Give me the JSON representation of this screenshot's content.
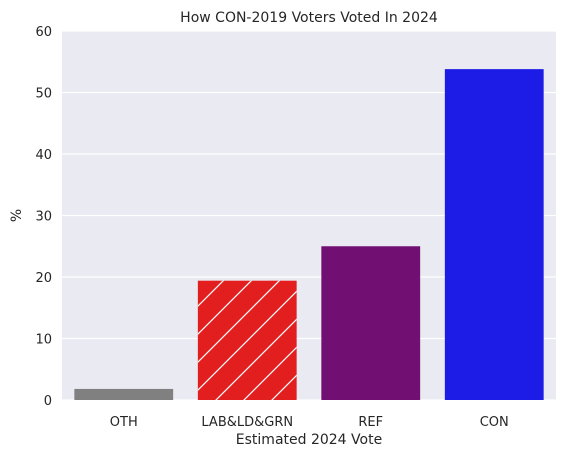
{
  "chart_data": {
    "type": "bar",
    "title": "How CON-2019 Voters Voted In 2024",
    "xlabel": "Estimated 2024 Vote",
    "ylabel": "%",
    "ylim": [
      0,
      60
    ],
    "yticks": [
      "0",
      "10",
      "20",
      "30",
      "40",
      "50",
      "60"
    ],
    "categories": [
      "OTH",
      "LAB&LD&GRN",
      "REF",
      "CON"
    ],
    "values": [
      1.8,
      19.4,
      25.0,
      53.8
    ],
    "colors": [
      "#808080",
      "#e31e1e",
      "#720f72",
      "#1c1ce6"
    ],
    "hatched": [
      false,
      true,
      false,
      false
    ],
    "grid": true,
    "background": "#eaeaf2"
  }
}
